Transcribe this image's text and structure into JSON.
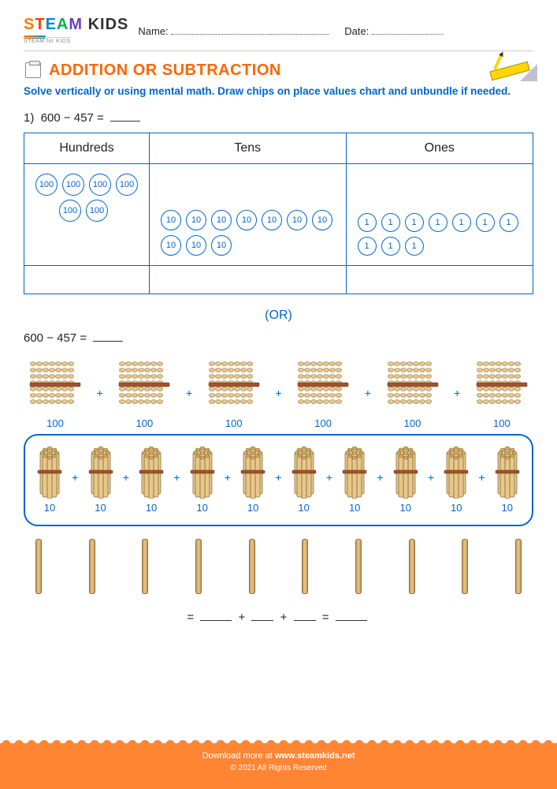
{
  "header": {
    "logo_main_s": "S",
    "logo_main_t": "T",
    "logo_main_e": "E",
    "logo_main_a": "A",
    "logo_main_m": "M ",
    "logo_main_k": "KIDS",
    "logo_sub": "STEAM for KIDS",
    "name_label": "Name:",
    "date_label": "Date:"
  },
  "title": "ADDITION OR SUBTRACTION",
  "instructions": "Solve vertically or using mental math. Draw chips on place values chart and unbundle if needed.",
  "problem1": {
    "number": "1)",
    "expression": "600 − 457 ="
  },
  "table": {
    "col_hundreds": "Hundreds",
    "col_tens": "Tens",
    "col_ones": "Ones",
    "chip_100": "100",
    "chip_10": "10",
    "chip_1": "1",
    "hundreds_count": 6,
    "tens_count": 10,
    "ones_count": 10
  },
  "or_label": "(OR)",
  "problem2": {
    "expression": "600 − 457 ="
  },
  "bundles": {
    "plus": "+",
    "label_100": "100",
    "label_10": "10",
    "hundreds_count": 6,
    "tens_count": 10,
    "ones_count": 10
  },
  "final": {
    "equals": "=",
    "plus": "+"
  },
  "footer": {
    "text": "Download more at ",
    "link": "www.steamkids.net",
    "copy": "© 2021 All Rights Reserved"
  },
  "colors": {
    "primary_blue": "#0066cc",
    "title_orange": "#ff6600",
    "footer_orange": "#ff8533",
    "bundle_fill": "#e8c88a",
    "bundle_stroke": "#8b6f3f"
  }
}
